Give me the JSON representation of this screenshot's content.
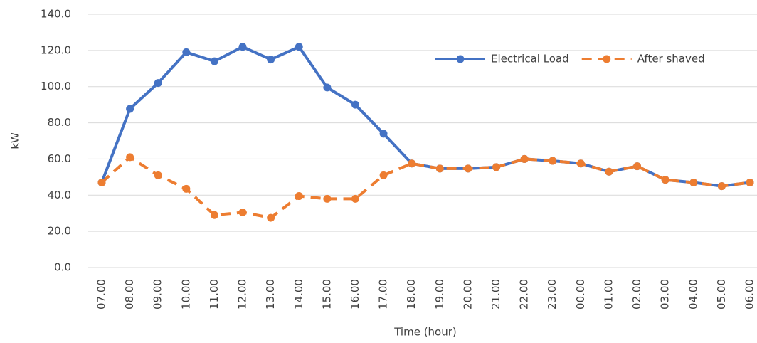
{
  "chart_data": {
    "type": "line",
    "categories": [
      "07.00",
      "08.00",
      "09.00",
      "10.00",
      "11.00",
      "12.00",
      "13.00",
      "14.00",
      "15.00",
      "16.00",
      "17.00",
      "18.00",
      "19.00",
      "20.00",
      "21.00",
      "22.00",
      "23.00",
      "00.00",
      "01.00",
      "02.00",
      "03.00",
      "04.00",
      "05.00",
      "06.00"
    ],
    "series": [
      {
        "name": "Electrical Load",
        "color": "#4472c4",
        "dash": false,
        "values": [
          47,
          87.7,
          102,
          119,
          114,
          122,
          115,
          122,
          99.5,
          90,
          74,
          57.5,
          54.7,
          54.7,
          55.5,
          60,
          59,
          57.5,
          53,
          56,
          48.5,
          47,
          45,
          47
        ]
      },
      {
        "name": "After shaved",
        "color": "#ed7d31",
        "dash": true,
        "values": [
          47,
          61,
          51,
          43.5,
          29,
          30.5,
          27.5,
          39.5,
          38,
          38,
          51,
          57.5,
          54.7,
          54.7,
          55.5,
          60,
          59,
          57.5,
          53,
          56,
          48.5,
          47,
          45,
          47
        ]
      }
    ],
    "xlabel": "Time (hour)",
    "ylabel": "kW",
    "ylim": [
      0,
      140
    ],
    "yticks": [
      {
        "value": 0,
        "label": "0.0"
      },
      {
        "value": 20,
        "label": "20.0"
      },
      {
        "value": 40,
        "label": "40.0"
      },
      {
        "value": 60,
        "label": "60.0"
      },
      {
        "value": 80,
        "label": "80.0"
      },
      {
        "value": 100,
        "label": "100.0"
      },
      {
        "value": 120,
        "label": "120.0"
      },
      {
        "value": 140,
        "label": "140.0"
      }
    ],
    "grid": true,
    "legend": "upper right"
  }
}
